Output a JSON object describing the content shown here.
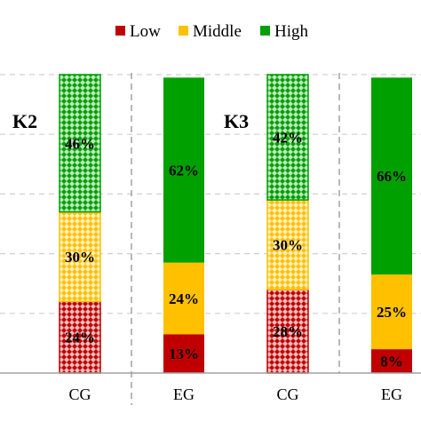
{
  "colors": {
    "low": "#c00000",
    "middle": "#ffc000",
    "high": "#00a000",
    "grid": "#d0d0d0",
    "divider": "#a0a0a0"
  },
  "legend": [
    {
      "key": "low",
      "label": "Low"
    },
    {
      "key": "middle",
      "label": "Middle"
    },
    {
      "key": "high",
      "label": "High"
    }
  ],
  "chart_data": {
    "type": "bar",
    "stacked": true,
    "percent": true,
    "ylim": [
      0,
      100
    ],
    "legend_position": "top-center",
    "grid": true,
    "categories": [
      "CG",
      "EG",
      "CG",
      "EG"
    ],
    "groups": [
      {
        "label": "K2",
        "categories": [
          "CG",
          "EG"
        ]
      },
      {
        "label": "K3",
        "categories": [
          "CG",
          "EG"
        ]
      }
    ],
    "series": [
      {
        "name": "Low",
        "values": [
          24,
          13,
          28,
          8
        ],
        "labels": [
          "24%",
          "13%",
          "28%",
          "8%"
        ]
      },
      {
        "name": "Middle",
        "values": [
          30,
          24,
          30,
          25
        ],
        "labels": [
          "30%",
          "24%",
          "30%",
          "25%"
        ]
      },
      {
        "name": "High",
        "values": [
          46,
          62,
          42,
          66
        ],
        "labels": [
          "46%",
          "62%",
          "42%",
          "66%"
        ]
      }
    ],
    "patterned": [
      true,
      false,
      true,
      false
    ]
  }
}
